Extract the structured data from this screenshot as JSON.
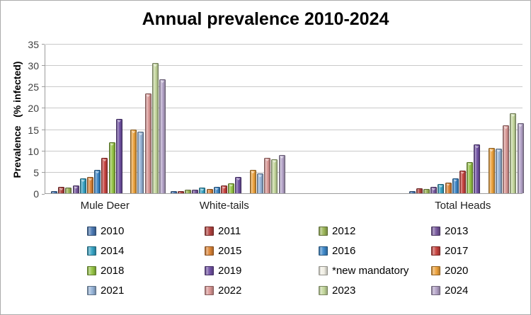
{
  "chart": {
    "title": "Annual prevalence 2010-2024",
    "y_axis_label": "Prevalence   (% infected)",
    "background_color": "#FFFFFF",
    "border_color": "#ABABAB",
    "gridline_color": "#C9C9C9",
    "axis_color": "#9C9C9C",
    "tick_label_color": "#3F3F3F"
  },
  "chart_data": {
    "type": "bar",
    "title": "Annual prevalence 2010-2024",
    "ylabel": "Prevalence (% infected)",
    "ylim": [
      0,
      35
    ],
    "ytick_step": 5,
    "grid": true,
    "legend_position": "bottom",
    "categories": [
      "Mule Deer",
      "White-tails",
      "",
      "Total Heads"
    ],
    "series": [
      {
        "name": "2010",
        "color": "#4977B1",
        "values": [
          0.4,
          0.3,
          null,
          0.4
        ]
      },
      {
        "name": "2011",
        "color": "#B2423F",
        "values": [
          1.3,
          0.4,
          null,
          1.0
        ]
      },
      {
        "name": "2012",
        "color": "#9BB558",
        "values": [
          1.1,
          0.7,
          null,
          0.8
        ]
      },
      {
        "name": "2013",
        "color": "#77589D",
        "values": [
          1.7,
          0.7,
          null,
          1.3
        ]
      },
      {
        "name": "2014",
        "color": "#36A2C3",
        "values": [
          3.3,
          1.2,
          null,
          2.0
        ]
      },
      {
        "name": "2015",
        "color": "#DB8335",
        "values": [
          3.6,
          0.9,
          null,
          2.4
        ]
      },
      {
        "name": "2016",
        "color": "#3D87C8",
        "values": [
          5.3,
          1.4,
          null,
          3.4
        ]
      },
      {
        "name": "2017",
        "color": "#C7433F",
        "values": [
          8.1,
          1.7,
          null,
          5.2
        ]
      },
      {
        "name": "2018",
        "color": "#94C344",
        "values": [
          11.8,
          2.2,
          null,
          7.2
        ]
      },
      {
        "name": "2019",
        "color": "#7051A3",
        "values": [
          17.3,
          3.7,
          null,
          11.2
        ]
      },
      {
        "name": "*new mandatory",
        "color": "#F0EEE4",
        "values": [
          0,
          0,
          null,
          0
        ]
      },
      {
        "name": "2020",
        "color": "#EDA23C",
        "values": [
          14.7,
          5.3,
          null,
          10.4
        ]
      },
      {
        "name": "2021",
        "color": "#95B3D7",
        "values": [
          14.2,
          4.4,
          null,
          10.3
        ]
      },
      {
        "name": "2022",
        "color": "#D99694",
        "values": [
          23.2,
          8.2,
          null,
          15.7
        ]
      },
      {
        "name": "2023",
        "color": "#C3D69B",
        "values": [
          30.3,
          7.8,
          null,
          18.6
        ]
      },
      {
        "name": "2024",
        "color": "#B3A2C7",
        "values": [
          26.5,
          8.8,
          null,
          16.2
        ]
      }
    ]
  }
}
